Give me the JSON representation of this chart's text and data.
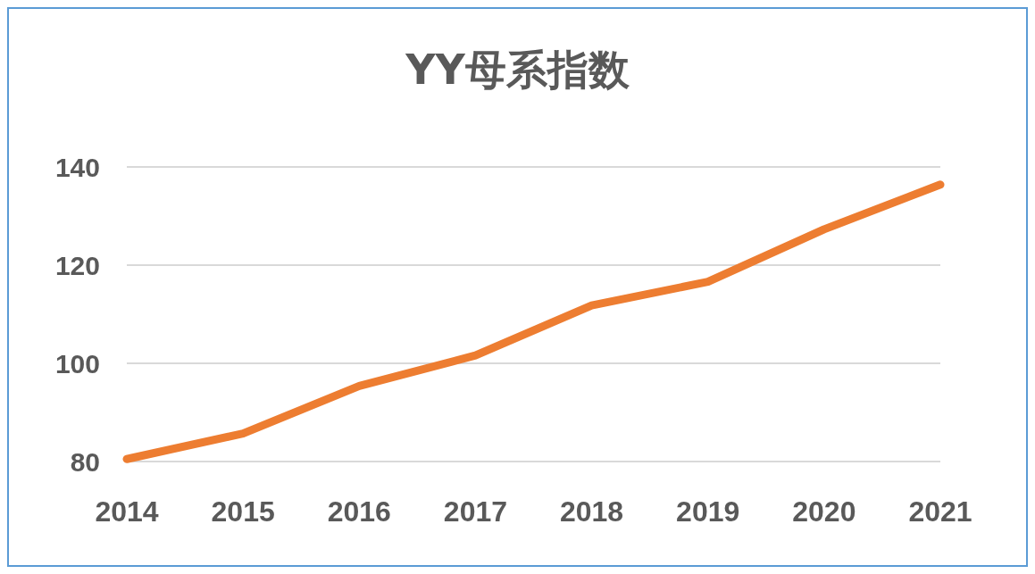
{
  "chart_data": {
    "type": "line",
    "title": "YY母系指数",
    "categories": [
      "2014",
      "2015",
      "2016",
      "2017",
      "2018",
      "2019",
      "2020",
      "2021"
    ],
    "series": [
      {
        "color": "#ed7d31",
        "values": [
          80.5,
          85.7,
          95.4,
          101.6,
          111.8,
          116.6,
          127.3,
          136.4
        ]
      }
    ],
    "ylim": [
      80,
      140
    ],
    "yticks": [
      80,
      100,
      120,
      140
    ],
    "grid": "y",
    "marker": "none",
    "line_style": "solid"
  }
}
